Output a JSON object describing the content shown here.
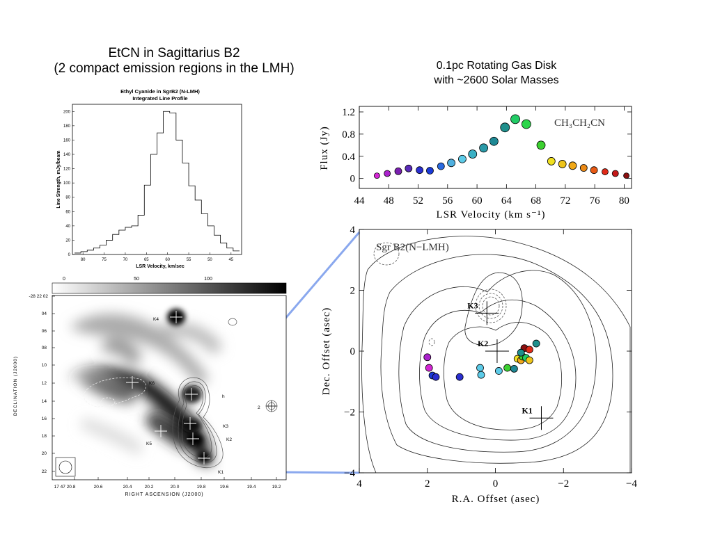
{
  "main_title": {
    "line1": "EtCN in Sagittarius B2",
    "line2": "(2 compact emission regions in the LMH)"
  },
  "disk_title": {
    "line1": "0.1pc Rotating Gas Disk",
    "line2": "with ~2600 Solar Masses"
  },
  "chart_data": [
    {
      "type": "histogram",
      "title": "Ethyl Cyanide in SgrB2 (N-LMH)",
      "subtitle": "Integrated Line Profile",
      "xlabel": "LSR Velocity, km/sec",
      "ylabel": "Line Strength, mJy/beam",
      "xlim": [
        82.5,
        42.5
      ],
      "ylim": [
        0,
        210
      ],
      "xticks": [
        80,
        75,
        70,
        65,
        60,
        55,
        50,
        45
      ],
      "yticks": [
        0,
        20,
        40,
        60,
        80,
        100,
        120,
        140,
        160,
        180,
        200
      ],
      "steps": [
        {
          "x": 82.0,
          "y": 2
        },
        {
          "x": 80.5,
          "y": 4
        },
        {
          "x": 79.0,
          "y": 6
        },
        {
          "x": 77.5,
          "y": 9
        },
        {
          "x": 76.0,
          "y": 13
        },
        {
          "x": 74.5,
          "y": 20
        },
        {
          "x": 73.0,
          "y": 28
        },
        {
          "x": 71.5,
          "y": 34
        },
        {
          "x": 70.0,
          "y": 38
        },
        {
          "x": 68.5,
          "y": 40
        },
        {
          "x": 67.0,
          "y": 55
        },
        {
          "x": 65.5,
          "y": 97
        },
        {
          "x": 64.0,
          "y": 140
        },
        {
          "x": 62.5,
          "y": 170
        },
        {
          "x": 61.0,
          "y": 200
        },
        {
          "x": 59.5,
          "y": 198
        },
        {
          "x": 58.0,
          "y": 160
        },
        {
          "x": 56.5,
          "y": 128
        },
        {
          "x": 55.0,
          "y": 96
        },
        {
          "x": 53.5,
          "y": 76
        },
        {
          "x": 52.0,
          "y": 57
        },
        {
          "x": 50.5,
          "y": 40
        },
        {
          "x": 49.0,
          "y": 27
        },
        {
          "x": 47.5,
          "y": 16
        },
        {
          "x": 46.0,
          "y": 9
        },
        {
          "x": 44.5,
          "y": 5
        }
      ],
      "step_width": 1.5
    },
    {
      "type": "scatter",
      "xlabel": "LSR Velocity (km s⁻¹)",
      "ylabel": "Flux (Jy)",
      "annotation": "CH₃CH₂CN",
      "xlim": [
        44,
        81
      ],
      "ylim": [
        -0.18,
        1.3
      ],
      "xticks": [
        44,
        48,
        52,
        56,
        60,
        64,
        68,
        72,
        76,
        80
      ],
      "yticks": [
        0,
        0.4,
        0.8,
        1.2
      ],
      "ytick_labels": [
        "0",
        "0.4",
        "0.8",
        "1.2"
      ],
      "points": [
        {
          "x": 46.4,
          "y": 0.05,
          "color": "#d426d4",
          "r": 4
        },
        {
          "x": 47.8,
          "y": 0.09,
          "color": "#aa22cc",
          "r": 4.5
        },
        {
          "x": 49.3,
          "y": 0.13,
          "color": "#7a1fb0",
          "r": 5
        },
        {
          "x": 50.7,
          "y": 0.18,
          "color": "#5a2ab8",
          "r": 5
        },
        {
          "x": 52.2,
          "y": 0.15,
          "color": "#2a2fd0",
          "r": 5
        },
        {
          "x": 53.6,
          "y": 0.14,
          "color": "#1a3ad8",
          "r": 5
        },
        {
          "x": 55.1,
          "y": 0.22,
          "color": "#2a6ae0",
          "r": 5
        },
        {
          "x": 56.5,
          "y": 0.28,
          "color": "#4fb0e0",
          "r": 5.5
        },
        {
          "x": 58.0,
          "y": 0.35,
          "color": "#5ccbe8",
          "r": 5.5
        },
        {
          "x": 59.4,
          "y": 0.44,
          "color": "#3ab0c4",
          "r": 6
        },
        {
          "x": 60.9,
          "y": 0.55,
          "color": "#2a9aa8",
          "r": 6
        },
        {
          "x": 62.3,
          "y": 0.67,
          "color": "#1e8894",
          "r": 6
        },
        {
          "x": 63.8,
          "y": 0.92,
          "color": "#1f8f8c",
          "r": 6.5
        },
        {
          "x": 65.2,
          "y": 1.07,
          "color": "#22cc66",
          "r": 6.5
        },
        {
          "x": 66.7,
          "y": 0.98,
          "color": "#2bd64a",
          "r": 6.5
        },
        {
          "x": 68.7,
          "y": 0.6,
          "color": "#3cd030",
          "r": 6
        },
        {
          "x": 70.1,
          "y": 0.31,
          "color": "#f0e020",
          "r": 5.5
        },
        {
          "x": 71.6,
          "y": 0.26,
          "color": "#eec41a",
          "r": 5.5
        },
        {
          "x": 73.0,
          "y": 0.23,
          "color": "#f0a818",
          "r": 5.5
        },
        {
          "x": 74.5,
          "y": 0.19,
          "color": "#ec8a16",
          "r": 5
        },
        {
          "x": 75.9,
          "y": 0.15,
          "color": "#e85a14",
          "r": 5
        },
        {
          "x": 77.4,
          "y": 0.12,
          "color": "#e02a18",
          "r": 4.5
        },
        {
          "x": 78.8,
          "y": 0.09,
          "color": "#c41818",
          "r": 4.5
        },
        {
          "x": 80.3,
          "y": 0.05,
          "color": "#8a1010",
          "r": 4
        }
      ]
    },
    {
      "type": "contour_map",
      "title": "Sgr B2(N−LMH)",
      "xlabel": "R.A. Offset (asec)",
      "ylabel": "Dec. Offset (asec)",
      "xlim": [
        4,
        -4
      ],
      "ylim": [
        -4,
        4
      ],
      "xticks": [
        4,
        2,
        0,
        -2,
        -4
      ],
      "xtick_labels": [
        "4",
        "2",
        "0",
        "−2",
        "−4"
      ],
      "yticks": [
        4,
        2,
        0,
        -2,
        -4
      ],
      "ytick_labels": [
        "4",
        "2",
        "0",
        "−2",
        "−4"
      ],
      "markers": [
        {
          "label": "K3",
          "x": 0.25,
          "y": 1.25
        },
        {
          "label": "K2",
          "x": -0.05,
          "y": 0.0
        },
        {
          "label": "K1",
          "x": -1.35,
          "y": -2.2
        }
      ],
      "points": [
        {
          "x": 2.0,
          "y": -0.2,
          "color": "#aa22cc"
        },
        {
          "x": 1.95,
          "y": -0.55,
          "color": "#d426d4"
        },
        {
          "x": 1.85,
          "y": -0.8,
          "color": "#1a3ad8"
        },
        {
          "x": 1.75,
          "y": -0.85,
          "color": "#2a2fd0"
        },
        {
          "x": 1.05,
          "y": -0.85,
          "color": "#2a2fd0"
        },
        {
          "x": 0.45,
          "y": -0.55,
          "color": "#5ccbe8"
        },
        {
          "x": 0.42,
          "y": -0.78,
          "color": "#5ccbe8"
        },
        {
          "x": -0.1,
          "y": -0.65,
          "color": "#5ccbe8"
        },
        {
          "x": -0.35,
          "y": -0.55,
          "color": "#3cd030"
        },
        {
          "x": -0.55,
          "y": -0.58,
          "color": "#1e8894"
        },
        {
          "x": -0.65,
          "y": -0.25,
          "color": "#f0e020"
        },
        {
          "x": -0.75,
          "y": -0.3,
          "color": "#f0a818"
        },
        {
          "x": -0.8,
          "y": -0.18,
          "color": "#3cd030"
        },
        {
          "x": -0.9,
          "y": -0.22,
          "color": "#22cc66"
        },
        {
          "x": -1.0,
          "y": -0.3,
          "color": "#eec41a"
        },
        {
          "x": -0.85,
          "y": 0.1,
          "color": "#8a1010"
        },
        {
          "x": -1.0,
          "y": 0.05,
          "color": "#e02a18"
        },
        {
          "x": -0.75,
          "y": -0.05,
          "color": "#1f8f8c"
        },
        {
          "x": -1.2,
          "y": 0.25,
          "color": "#1f8f8c"
        }
      ]
    },
    {
      "type": "image_map",
      "xlabel": "RIGHT ASCENSION (J2000)",
      "ylabel": "DECLINATION (J2000)",
      "colorbar_ticks": [
        "0",
        "50",
        "100"
      ],
      "xtick_labels": [
        "17 47 20.8",
        "20.6",
        "20.4",
        "20.2",
        "20.0",
        "19.8",
        "19.6",
        "19.4",
        "19.2"
      ],
      "ytick_labels": [
        "-28 22 02",
        "04",
        "06",
        "08",
        "10",
        "12",
        "14",
        "16",
        "18",
        "20",
        "22"
      ],
      "labels": [
        "K4",
        "K6",
        "h",
        "2",
        "K3",
        "K2",
        "K5",
        "K1"
      ]
    }
  ]
}
